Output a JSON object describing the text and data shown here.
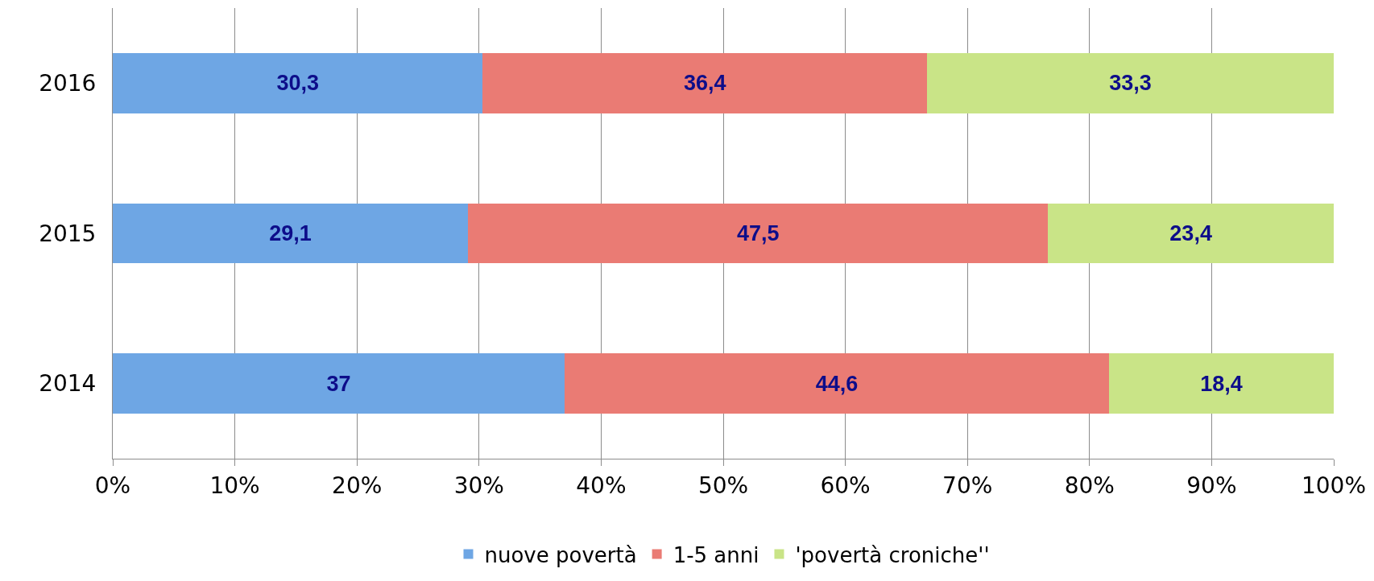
{
  "chart_data": {
    "type": "bar",
    "orientation": "horizontal",
    "stacked": true,
    "categories": [
      "2016",
      "2015",
      "2014"
    ],
    "series": [
      {
        "name": "nuove povertà",
        "color": "#6ea6e4",
        "values": [
          30.3,
          29.1,
          37
        ],
        "value_labels": [
          "30,3",
          "29,1",
          "37"
        ]
      },
      {
        "name": "1-5 anni",
        "color": "#ea7b74",
        "values": [
          36.4,
          47.5,
          44.6
        ],
        "value_labels": [
          "36,4",
          "47,5",
          "44,6"
        ]
      },
      {
        "name": "'povertà croniche''",
        "color": "#c9e487",
        "values": [
          33.3,
          23.4,
          18.4
        ],
        "value_labels": [
          "33,3",
          "23,4",
          "18,4"
        ]
      }
    ],
    "xlim": [
      0,
      100
    ],
    "xticks": [
      {
        "value": 0,
        "label": "0%"
      },
      {
        "value": 10,
        "label": "10%"
      },
      {
        "value": 20,
        "label": "20%"
      },
      {
        "value": 30,
        "label": "30%"
      },
      {
        "value": 40,
        "label": "40%"
      },
      {
        "value": 50,
        "label": "50%"
      },
      {
        "value": 60,
        "label": "60%"
      },
      {
        "value": 70,
        "label": "70%"
      },
      {
        "value": 80,
        "label": "80%"
      },
      {
        "value": 90,
        "label": "90%"
      },
      {
        "value": 100,
        "label": "100%"
      }
    ],
    "grid": "x",
    "legend": "bottom"
  }
}
